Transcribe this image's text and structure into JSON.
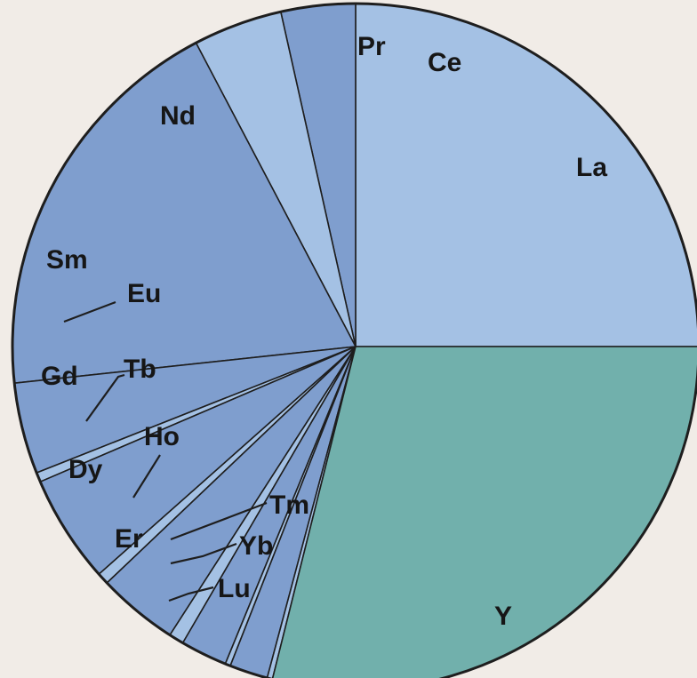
{
  "chart_data": {
    "type": "pie",
    "title": "",
    "slices": [
      {
        "label": "La",
        "value": 25.0,
        "color": "#a4c1e4"
      },
      {
        "label": "Ce",
        "value": 3.5,
        "color": "#7f9ece"
      },
      {
        "label": "Pr",
        "value": 4.2,
        "color": "#a4c1e4"
      },
      {
        "label": "Nd",
        "value": 19.0,
        "color": "#7f9ece"
      },
      {
        "label": "Sm",
        "value": 4.3,
        "color": "#7f9ece"
      },
      {
        "label": "Eu",
        "value": 0.45,
        "color": "#a4c1e4"
      },
      {
        "label": "Gd",
        "value": 5.1,
        "color": "#7f9ece"
      },
      {
        "label": "Tb",
        "value": 0.55,
        "color": "#a4c1e4"
      },
      {
        "label": "Dy",
        "value": 3.8,
        "color": "#7f9ece"
      },
      {
        "label": "Ho",
        "value": 0.7,
        "color": "#a4c1e4"
      },
      {
        "label": "Er",
        "value": 2.2,
        "color": "#7f9ece"
      },
      {
        "label": "Tm",
        "value": 0.25,
        "color": "#a4c1e4"
      },
      {
        "label": "Yb",
        "value": 1.8,
        "color": "#7f9ece"
      },
      {
        "label": "Lu",
        "value": 0.25,
        "color": "#a4c1e4"
      },
      {
        "label": "Y",
        "value": 28.9,
        "color": "#71b0ac"
      }
    ],
    "start_angle_deg": 0,
    "direction": "counterclockwise",
    "legend": "none",
    "labels": "on-chart"
  },
  "colors": {
    "background": "#f1ece7",
    "outline": "#1e1e1e",
    "label_text": "#161616"
  }
}
